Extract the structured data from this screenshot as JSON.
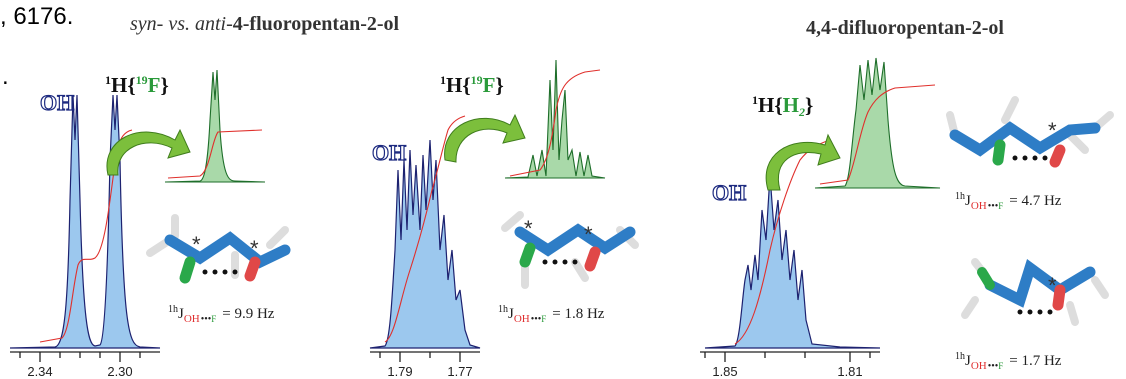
{
  "fragments": [
    ", 6176.",
    "."
  ],
  "titles": {
    "left": {
      "italic": "syn- vs. anti-",
      "plain": "4-fluoropentan-2-ol"
    },
    "right": "4,4-difluoropentan-2-ol"
  },
  "stereo_marker": "*",
  "panels": [
    {
      "peak_label": "OH",
      "decoupling": {
        "sup": "1",
        "base": "H{",
        "nucleus_sup": "19",
        "nucleus": "F",
        "close": "}"
      },
      "couplings": [
        {
          "sup": "1h",
          "base": "J",
          "donor": "OH",
          "dots": "•••",
          "acceptor": "F",
          "value": "= 9.9 Hz"
        }
      ],
      "ticks": [
        "2.34",
        "2.30"
      ]
    },
    {
      "peak_label": "OH",
      "decoupling": {
        "sup": "1",
        "base": "H{",
        "nucleus_sup": "19",
        "nucleus": "F",
        "close": "}"
      },
      "couplings": [
        {
          "sup": "1h",
          "base": "J",
          "donor": "OH",
          "dots": "•••",
          "acceptor": "F",
          "value": "= 1.8 Hz"
        }
      ],
      "ticks": [
        "1.79",
        "1.77"
      ]
    },
    {
      "peak_label": "OH",
      "decoupling": {
        "sup": "1",
        "base": "H{",
        "nucleus": "H",
        "nucleus_sub": "2",
        "close": "}"
      },
      "couplings": [
        {
          "sup": "1h",
          "base": "J",
          "donor": "OH",
          "dots": "•••",
          "acceptor": "F",
          "value": "= 4.7 Hz"
        },
        {
          "sup": "1h",
          "base": "J",
          "donor": "OH",
          "dots": "•••",
          "acceptor": "F",
          "value": "= 1.7 Hz"
        }
      ],
      "ticks": [
        "1.85",
        "1.81"
      ]
    }
  ]
}
